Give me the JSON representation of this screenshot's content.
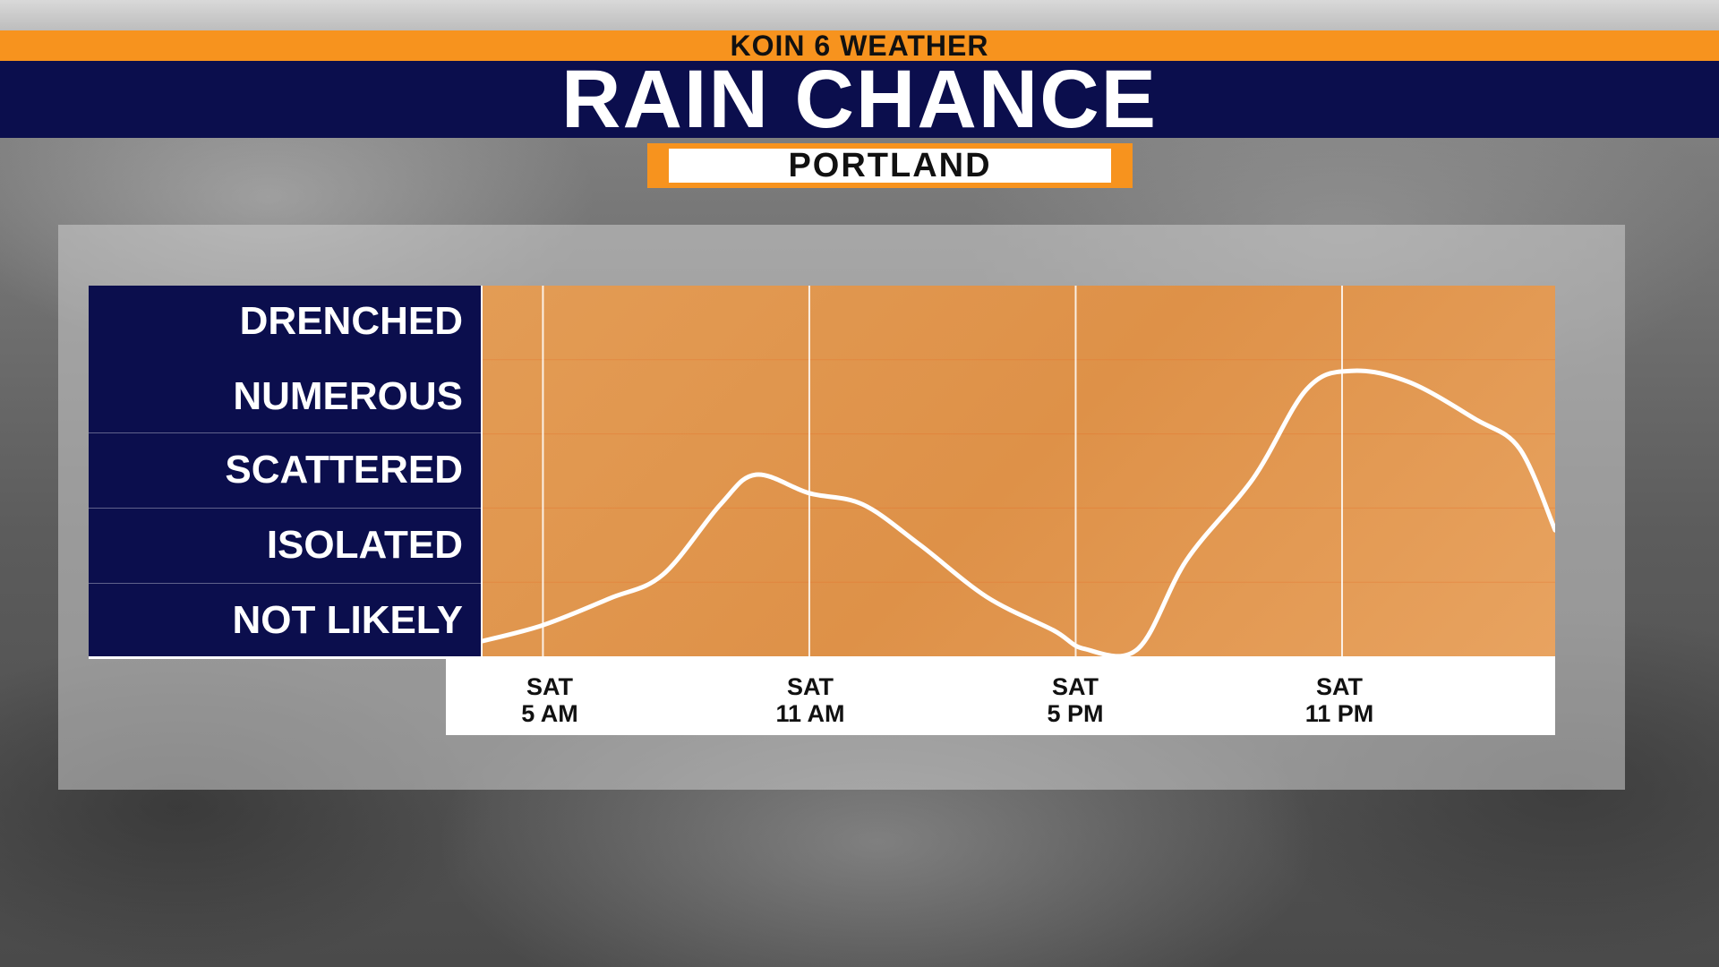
{
  "header": {
    "network": "KOIN 6 WEATHER",
    "title": "RAIN CHANCE",
    "location": "PORTLAND"
  },
  "colors": {
    "orange": "#f7931e",
    "navy": "#0b0e4d",
    "plot_fill": "#de9148",
    "line": "#ffffff"
  },
  "chart_data": {
    "type": "line",
    "title": "RAIN CHANCE",
    "subtitle": "PORTLAND",
    "y_categories": [
      "NOT LIKELY",
      "ISOLATED",
      "SCATTERED",
      "NUMEROUS",
      "DRENCHED"
    ],
    "ylim": [
      0,
      5
    ],
    "x_ticks": [
      {
        "day": "SAT",
        "time": "5 AM",
        "hour": 5
      },
      {
        "day": "SAT",
        "time": "11 AM",
        "hour": 11
      },
      {
        "day": "SAT",
        "time": "5 PM",
        "hour": 17
      },
      {
        "day": "SAT",
        "time": "11 PM",
        "hour": 23
      }
    ],
    "xlim": [
      3.6,
      27.8
    ],
    "series": [
      {
        "points": [
          [
            3.6,
            0.2
          ],
          [
            5.0,
            0.42
          ],
          [
            6.5,
            0.78
          ],
          [
            7.7,
            1.1
          ],
          [
            9.0,
            2.05
          ],
          [
            9.8,
            2.45
          ],
          [
            11.0,
            2.2
          ],
          [
            12.2,
            2.05
          ],
          [
            13.5,
            1.5
          ],
          [
            15.0,
            0.8
          ],
          [
            16.5,
            0.35
          ],
          [
            17.2,
            0.1
          ],
          [
            18.4,
            0.1
          ],
          [
            19.5,
            1.3
          ],
          [
            21.0,
            2.4
          ],
          [
            22.2,
            3.6
          ],
          [
            23.2,
            3.85
          ],
          [
            24.5,
            3.7
          ],
          [
            26.0,
            3.2
          ],
          [
            27.0,
            2.8
          ],
          [
            27.8,
            1.7
          ]
        ]
      }
    ],
    "grid": {
      "vertical": true,
      "horizontal": true
    }
  }
}
